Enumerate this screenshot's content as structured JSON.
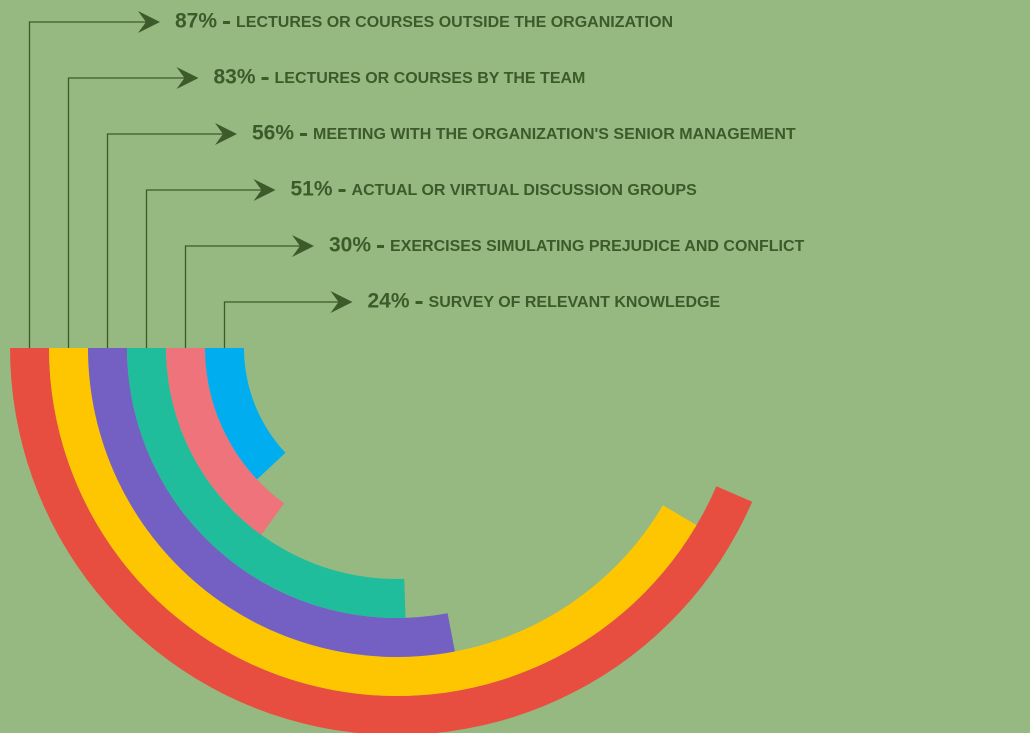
{
  "chart_data": {
    "type": "radial-bar",
    "categories": [
      "LECTURES OR COURSES OUTSIDE THE ORGANIZATION",
      "LECTURES OR COURSES BY THE TEAM",
      "MEETING WITH THE ORGANIZATION'S SENIOR MANAGEMENT",
      "ACTUAL OR VIRTUAL DISCUSSION GROUPS",
      "EXERCISES SIMULATING PREJUDICE AND CONFLICT",
      "SURVEY OF RELEVANT KNOWLEDGE"
    ],
    "values": [
      87,
      83,
      56,
      51,
      30,
      24
    ],
    "value_labels": [
      "87%",
      "83%",
      "56%",
      "51%",
      "30%",
      "24%"
    ],
    "colors": [
      "#e84e40",
      "#fec601",
      "#7460c2",
      "#1fbd9c",
      "#ef737a",
      "#00aeef"
    ]
  }
}
